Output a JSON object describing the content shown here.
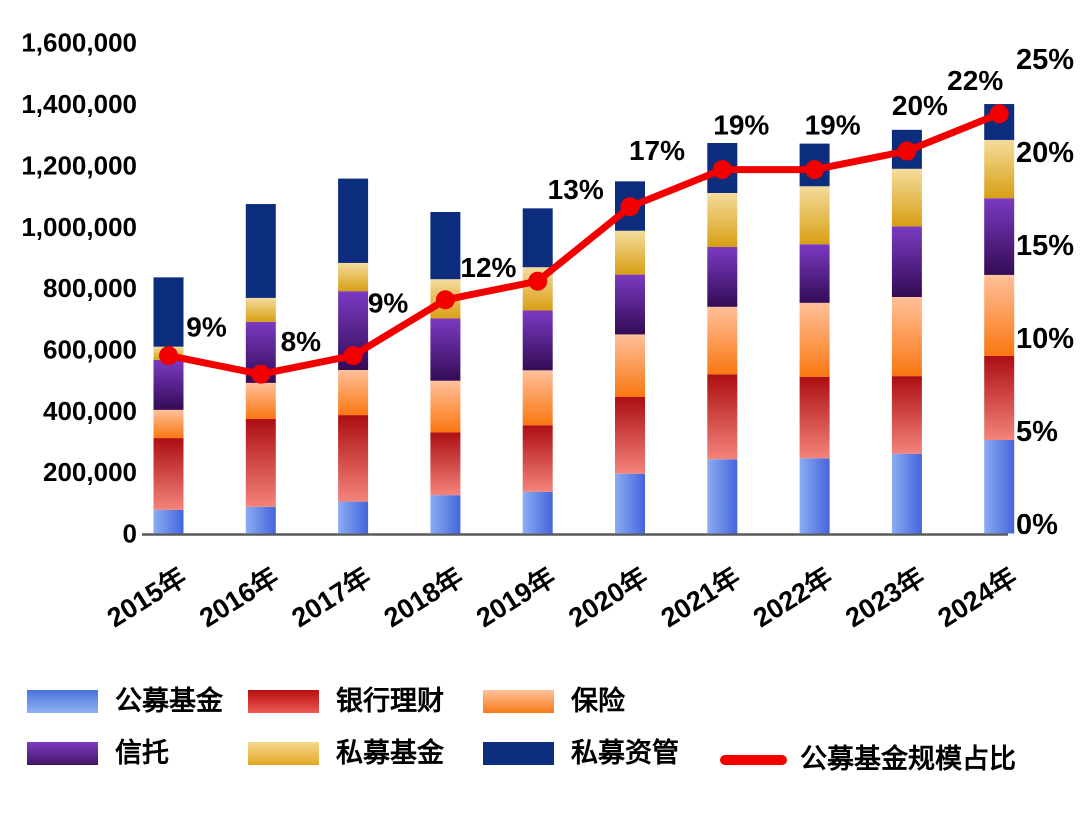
{
  "chart_data": {
    "type": "bar",
    "subtype": "stacked-bar-with-line-combo",
    "title": "",
    "categories": [
      "2015年",
      "2016年",
      "2017年",
      "2018年",
      "2019年",
      "2020年",
      "2021年",
      "2022年",
      "2023年",
      "2024年"
    ],
    "series": [
      {
        "name": "公募基金",
        "values": [
          77000,
          87000,
          104000,
          125000,
          136000,
          195000,
          242000,
          245000,
          260000,
          305000
        ],
        "from": "#8CACF2",
        "to": "#4365DC",
        "dir": "h"
      },
      {
        "name": "银行理财",
        "values": [
          234000,
          287000,
          282000,
          205000,
          217000,
          250000,
          277000,
          266000,
          253000,
          274000
        ],
        "from": "#AC0E12",
        "to": "#F4837B",
        "dir": "v"
      },
      {
        "name": "保险",
        "values": [
          92000,
          117000,
          147000,
          168000,
          179000,
          204000,
          220000,
          241000,
          258000,
          264000
        ],
        "from": "#FFC09A",
        "to": "#F97711",
        "dir": "v"
      },
      {
        "name": "信托",
        "values": [
          163000,
          199000,
          257000,
          203000,
          195000,
          195000,
          195000,
          191000,
          230000,
          250000
        ],
        "from": "#7B3AC2",
        "to": "#330C55",
        "dir": "v"
      },
      {
        "name": "私募基金",
        "values": [
          43000,
          78000,
          92000,
          128000,
          141000,
          143000,
          176000,
          189000,
          188000,
          190000
        ],
        "from": "#F4DC9C",
        "to": "#D89F14",
        "dir": "v"
      },
      {
        "name": "私募资管",
        "values": [
          226000,
          306000,
          275000,
          219000,
          192000,
          161000,
          163000,
          139000,
          127000,
          117000
        ],
        "from": "#0C2C7E",
        "to": "#0C2C7E",
        "dir": "v"
      }
    ],
    "line": {
      "name": "公募基金规模占比",
      "values_pct": [
        9,
        8,
        9,
        12,
        13,
        17,
        19,
        19,
        20,
        22
      ],
      "labels": [
        "9%",
        "8%",
        "9%",
        "12%",
        "13%",
        "17%",
        "19%",
        "19%",
        "20%",
        "22%"
      ],
      "color": "#F20000"
    },
    "left_axis": {
      "min": 0,
      "max": 1600000,
      "ticks": [
        "0",
        "200,000",
        "400,000",
        "600,000",
        "800,000",
        "1,000,000",
        "1,200,000",
        "1,400,000",
        "1,600,000"
      ]
    },
    "right_axis": {
      "min": 0,
      "max": 25,
      "ticks": [
        "0%",
        "5%",
        "10%",
        "15%",
        "20%",
        "25%"
      ]
    },
    "grid": false,
    "legend_position": "bottom"
  },
  "legend": {
    "items": [
      {
        "label": "公募基金",
        "type": "bar",
        "gradient": [
          "#4973DE",
          "#8FB2F2"
        ]
      },
      {
        "label": "银行理财",
        "type": "bar",
        "gradient": [
          "#B80F13",
          "#EE5A4F"
        ]
      },
      {
        "label": "保险",
        "type": "bar",
        "gradient": [
          "#FFC39C",
          "#F8791A"
        ]
      },
      {
        "label": "信托",
        "type": "bar",
        "gradient": [
          "#7E3CC2",
          "#451468"
        ]
      },
      {
        "label": "私募基金",
        "type": "bar",
        "gradient": [
          "#F5D98E",
          "#E2A826"
        ]
      },
      {
        "label": "私募资管",
        "type": "bar",
        "gradient": [
          "#0E2F7D",
          "#0E2F7D"
        ]
      },
      {
        "label": "公募基金规模占比",
        "type": "line",
        "color": "#F20000"
      }
    ]
  }
}
